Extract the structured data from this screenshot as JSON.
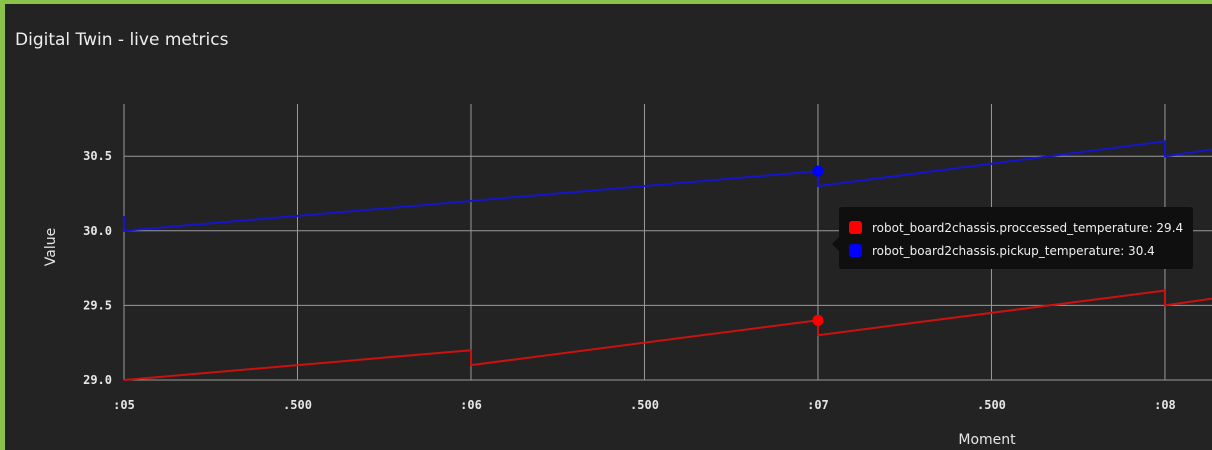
{
  "panel": {
    "title": "Digital Twin - live metrics"
  },
  "chart_data": {
    "type": "line",
    "xlabel": "Moment",
    "ylabel": "Value",
    "x_ticks": [
      ":05",
      ".500",
      ":06",
      ".500",
      ":07",
      ".500",
      ":08"
    ],
    "x_tick_values": [
      5.0,
      5.5,
      6.0,
      6.5,
      7.0,
      7.5,
      8.0
    ],
    "xlim": [
      5.0,
      8.15
    ],
    "y_ticks": [
      "29.0",
      "29.5",
      "30.0",
      "30.5"
    ],
    "y_tick_values": [
      29.0,
      29.5,
      30.0,
      30.5
    ],
    "ylim": [
      29.0,
      30.85
    ],
    "grid": true,
    "series": [
      {
        "name": "robot_board2chassis.proccessed_temperature",
        "color": "#ff0000",
        "line_color": "#cc1111",
        "points": [
          [
            5.0,
            29.0
          ],
          [
            6.0,
            29.2
          ],
          [
            6.0,
            29.1
          ],
          [
            7.0,
            29.4
          ],
          [
            7.0,
            29.3
          ],
          [
            8.0,
            29.6
          ],
          [
            8.0,
            29.5
          ],
          [
            8.15,
            29.55
          ]
        ]
      },
      {
        "name": "robot_board2chassis.pickup_temperature",
        "color": "#0000ff",
        "line_color": "#1515cc",
        "points": [
          [
            5.0,
            30.1
          ],
          [
            5.0,
            30.0
          ],
          [
            7.0,
            30.4
          ],
          [
            7.0,
            30.3
          ],
          [
            8.0,
            30.6
          ],
          [
            8.0,
            30.5
          ],
          [
            8.15,
            30.55
          ]
        ]
      }
    ],
    "highlight_x": 7.0,
    "tooltip": [
      {
        "label": "robot_board2chassis.proccessed_temperature: 29.4",
        "color": "#ff0000"
      },
      {
        "label": "robot_board2chassis.pickup_temperature: 30.4",
        "color": "#0000ff"
      }
    ]
  }
}
